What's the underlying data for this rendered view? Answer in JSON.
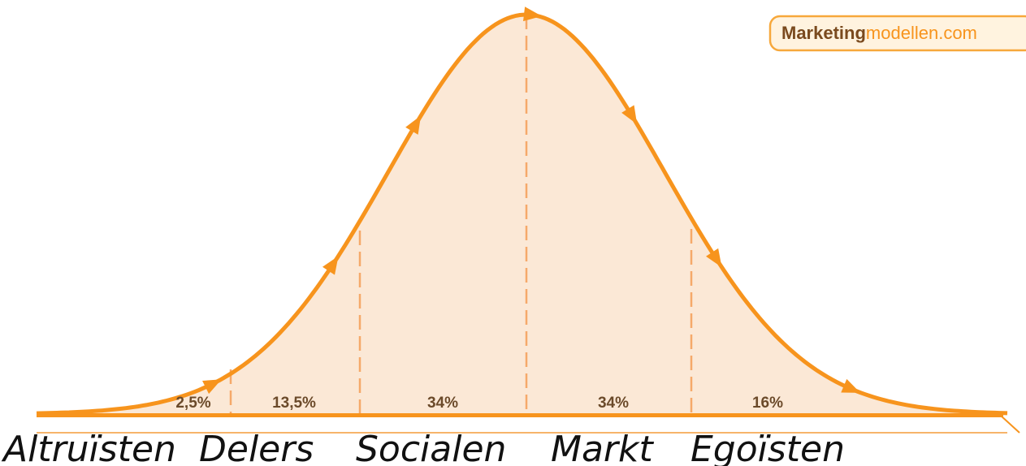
{
  "brand": {
    "bold": "Marketing",
    "rest": "modellen.com"
  },
  "segments": [
    {
      "share": "2,5%",
      "group": "Altruïsten"
    },
    {
      "share": "13,5%",
      "group": "Delers"
    },
    {
      "share": "34%",
      "group": "Socialen"
    },
    {
      "share": "34%",
      "group": "Markt"
    },
    {
      "share": "16%",
      "group": "Egoïsten"
    }
  ]
}
